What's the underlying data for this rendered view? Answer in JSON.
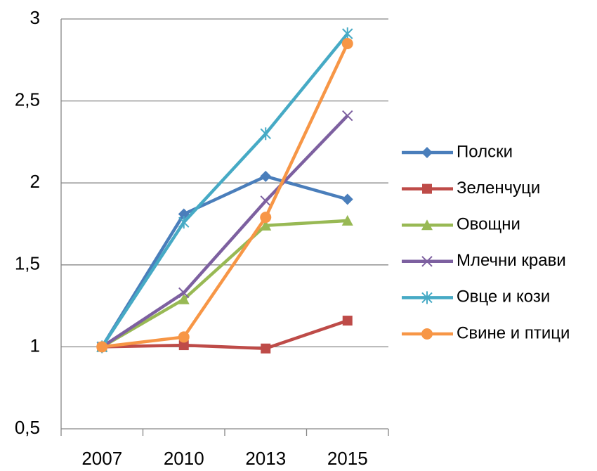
{
  "chart_data": {
    "type": "line",
    "categories": [
      "2007",
      "2010",
      "2013",
      "2015"
    ],
    "series": [
      {
        "name": "Полски",
        "color": "#4a7ebb",
        "marker": "diamond",
        "values": [
          1,
          1.81,
          2.04,
          1.9
        ]
      },
      {
        "name": "Зеленчуци",
        "color": "#be4b48",
        "marker": "square",
        "values": [
          1,
          1.01,
          0.99,
          1.16
        ]
      },
      {
        "name": "Овощни",
        "color": "#98b954",
        "marker": "triangle",
        "values": [
          1,
          1.29,
          1.74,
          1.77
        ]
      },
      {
        "name": "Млечни крави",
        "color": "#7d60a0",
        "marker": "x",
        "values": [
          1,
          1.33,
          1.89,
          2.41
        ]
      },
      {
        "name": "Овце и кози",
        "color": "#46aac5",
        "marker": "star",
        "values": [
          1,
          1.76,
          2.3,
          2.91
        ]
      },
      {
        "name": "Свине и птици",
        "color": "#f79646",
        "marker": "circle",
        "values": [
          1,
          1.06,
          1.79,
          2.85
        ]
      }
    ],
    "ylim": [
      0.5,
      3
    ],
    "yticks": [
      {
        "value": 0.5,
        "label": "0,5"
      },
      1,
      {
        "value": 1.5,
        "label": "1,5"
      },
      2,
      {
        "value": 2.5,
        "label": "2,5"
      },
      3
    ],
    "grid": true,
    "legend": "right"
  }
}
